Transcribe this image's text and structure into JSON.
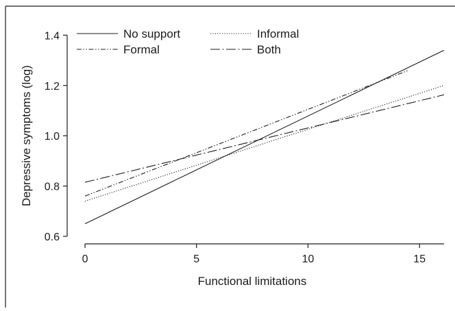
{
  "chart_data": {
    "type": "line",
    "title": "",
    "xlabel": "Functional limitations",
    "ylabel": "Depressive symptoms (log)",
    "xlim": [
      -0.8,
      16.1
    ],
    "ylim": [
      0.57,
      1.42
    ],
    "xticks": [
      0,
      5,
      10,
      15
    ],
    "xtick_labels": [
      "0",
      "5",
      "10",
      "15"
    ],
    "yticks": [
      0.6,
      0.8,
      1.0,
      1.2,
      1.4
    ],
    "ytick_labels": [
      "0.6",
      "0.8",
      "1.0",
      "1.2",
      "1.4"
    ],
    "grid": false,
    "legend": "top-left, two columns, no frame",
    "series": [
      {
        "name": "No support",
        "style": "solid",
        "x": [
          0,
          16.1
        ],
        "y": [
          0.65,
          1.34
        ]
      },
      {
        "name": "Informal",
        "style": "dotted",
        "x": [
          0,
          16.1
        ],
        "y": [
          0.74,
          1.2
        ]
      },
      {
        "name": "Formal",
        "style": "dash-dot-dot",
        "x": [
          0,
          14.5
        ],
        "y": [
          0.76,
          1.26
        ]
      },
      {
        "name": "Both",
        "style": "long-dash-dot",
        "x": [
          0,
          16.1
        ],
        "y": [
          0.815,
          1.163
        ]
      }
    ]
  }
}
